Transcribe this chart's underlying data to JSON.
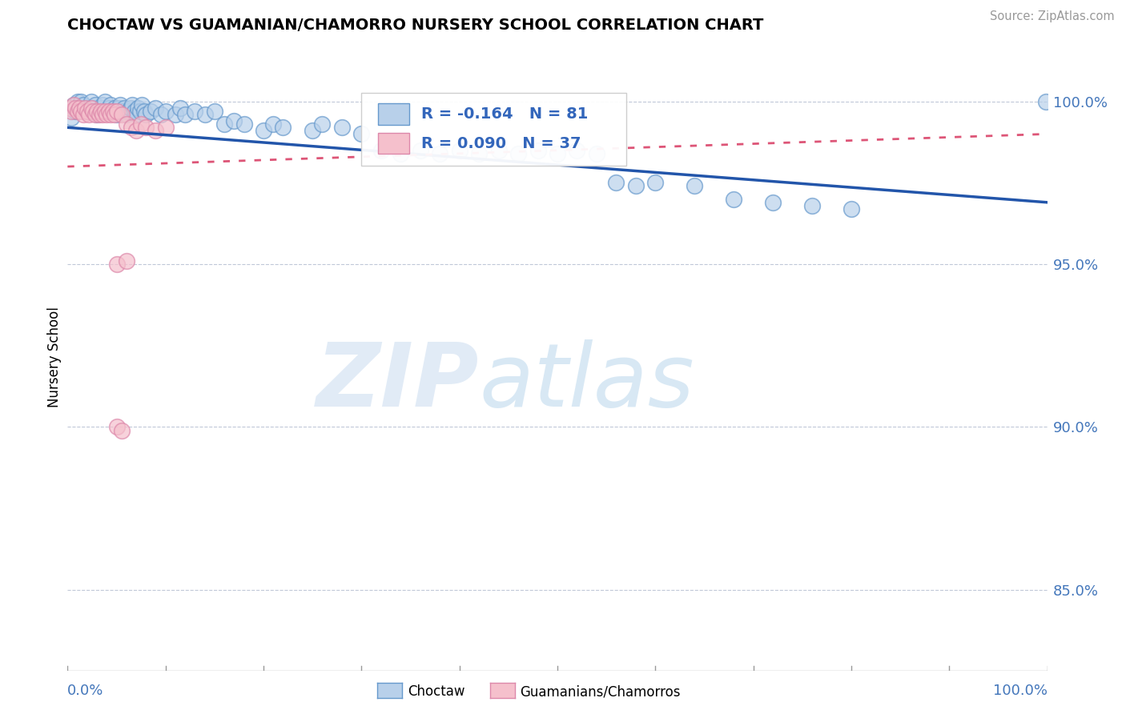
{
  "title": "CHOCTAW VS GUAMANIAN/CHAMORRO NURSERY SCHOOL CORRELATION CHART",
  "source": "Source: ZipAtlas.com",
  "ylabel": "Nursery School",
  "ytick_labels": [
    "85.0%",
    "90.0%",
    "95.0%",
    "100.0%"
  ],
  "ytick_values": [
    0.85,
    0.9,
    0.95,
    1.0
  ],
  "xlim": [
    0.0,
    1.0
  ],
  "ylim": [
    0.825,
    1.018
  ],
  "blue_color": "#b8d0ea",
  "blue_edge": "#6699cc",
  "pink_color": "#f5c0cc",
  "pink_edge": "#dd88aa",
  "trend_blue_color": "#2255aa",
  "trend_pink_color": "#dd5577",
  "trend_pink_dash": true,
  "R_blue": -0.164,
  "N_blue": 81,
  "R_pink": 0.09,
  "N_pink": 37,
  "legend_label_blue": "Choctaw",
  "legend_label_pink": "Guamanians/Chamorros",
  "blue_trend_start_y": 0.992,
  "blue_trend_end_y": 0.969,
  "pink_trend_start_y": 0.98,
  "pink_trend_end_y": 0.99,
  "blue_scatter_x": [
    0.002,
    0.004,
    0.006,
    0.008,
    0.01,
    0.012,
    0.014,
    0.016,
    0.018,
    0.02,
    0.022,
    0.024,
    0.026,
    0.028,
    0.03,
    0.032,
    0.034,
    0.036,
    0.038,
    0.04,
    0.042,
    0.044,
    0.046,
    0.048,
    0.05,
    0.052,
    0.054,
    0.056,
    0.058,
    0.06,
    0.062,
    0.064,
    0.066,
    0.068,
    0.07,
    0.072,
    0.074,
    0.076,
    0.078,
    0.08,
    0.085,
    0.09,
    0.095,
    0.1,
    0.11,
    0.115,
    0.12,
    0.13,
    0.14,
    0.15,
    0.16,
    0.17,
    0.18,
    0.2,
    0.21,
    0.22,
    0.25,
    0.26,
    0.28,
    0.3,
    0.32,
    0.34,
    0.36,
    0.38,
    0.4,
    0.42,
    0.44,
    0.46,
    0.48,
    0.5,
    0.52,
    0.54,
    0.56,
    0.58,
    0.6,
    0.64,
    0.68,
    0.72,
    0.76,
    0.8,
    0.999
  ],
  "blue_scatter_y": [
    0.998,
    0.995,
    0.999,
    0.997,
    1.0,
    0.998,
    1.0,
    0.999,
    0.997,
    0.998,
    0.997,
    1.0,
    0.998,
    0.999,
    0.996,
    0.997,
    0.998,
    0.999,
    1.0,
    0.997,
    0.998,
    0.999,
    0.997,
    0.998,
    0.996,
    0.998,
    0.999,
    0.997,
    0.998,
    0.996,
    0.997,
    0.998,
    0.999,
    0.997,
    0.996,
    0.998,
    0.997,
    0.999,
    0.997,
    0.996,
    0.997,
    0.998,
    0.996,
    0.997,
    0.996,
    0.998,
    0.996,
    0.997,
    0.996,
    0.997,
    0.993,
    0.994,
    0.993,
    0.991,
    0.993,
    0.992,
    0.991,
    0.993,
    0.992,
    0.99,
    0.985,
    0.984,
    0.985,
    0.984,
    0.985,
    0.984,
    0.985,
    0.984,
    0.985,
    0.984,
    0.985,
    0.984,
    0.975,
    0.974,
    0.975,
    0.974,
    0.97,
    0.969,
    0.968,
    0.967,
    1.0
  ],
  "pink_scatter_x": [
    0.002,
    0.004,
    0.006,
    0.008,
    0.01,
    0.012,
    0.014,
    0.016,
    0.018,
    0.02,
    0.022,
    0.024,
    0.026,
    0.028,
    0.03,
    0.032,
    0.034,
    0.036,
    0.038,
    0.04,
    0.042,
    0.044,
    0.046,
    0.048,
    0.05,
    0.055,
    0.06,
    0.065,
    0.07,
    0.075,
    0.08,
    0.09,
    0.1,
    0.05,
    0.06,
    0.05,
    0.055
  ],
  "pink_scatter_y": [
    0.998,
    0.997,
    0.999,
    0.998,
    0.997,
    0.998,
    0.997,
    0.996,
    0.998,
    0.997,
    0.996,
    0.998,
    0.997,
    0.996,
    0.997,
    0.996,
    0.997,
    0.996,
    0.997,
    0.996,
    0.997,
    0.996,
    0.997,
    0.996,
    0.997,
    0.996,
    0.993,
    0.992,
    0.991,
    0.993,
    0.992,
    0.991,
    0.992,
    0.95,
    0.951,
    0.9,
    0.899
  ]
}
